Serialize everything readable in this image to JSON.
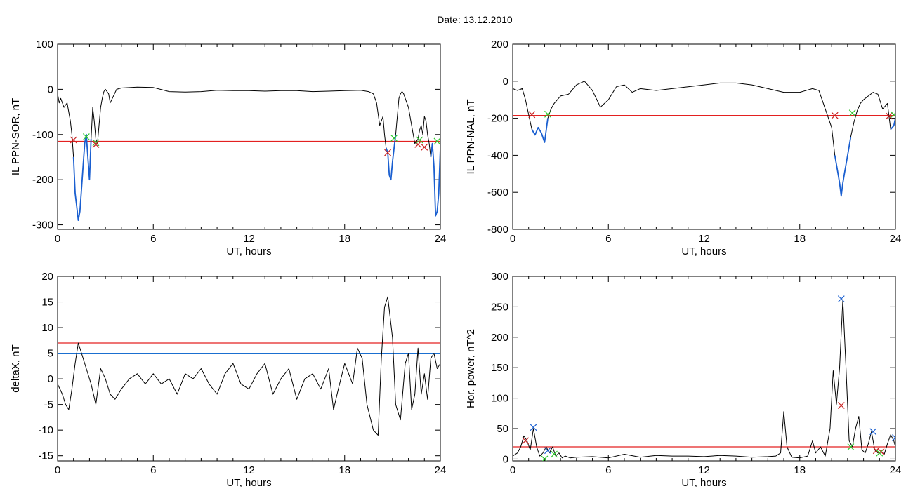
{
  "figure_title": "Date:  13.12.2010",
  "chart_data": [
    {
      "type": "line",
      "xlabel": "UT, hours",
      "ylabel": "IL PPN-SOR, nT",
      "xlim": [
        0,
        24
      ],
      "ylim": [
        -310,
        100
      ],
      "xticks": [
        0,
        6,
        12,
        18,
        24
      ],
      "yticks": [
        -300,
        -200,
        -100,
        0,
        100
      ],
      "series": [
        {
          "x": [
            0,
            0.1,
            0.2,
            0.4,
            0.6,
            0.7,
            0.8,
            0.9,
            1.0,
            1.1,
            1.2,
            1.3,
            1.4,
            1.5,
            1.6,
            1.7,
            1.8,
            1.9,
            2.0,
            2.1,
            2.2,
            2.3,
            2.4,
            2.5,
            2.6,
            2.7,
            2.8,
            2.9,
            3.0,
            3.1,
            3.2,
            3.3,
            3.5,
            3.7,
            4,
            5,
            6,
            7,
            8,
            9,
            10,
            11,
            12,
            13,
            14,
            15,
            16,
            17,
            18,
            19,
            19.5,
            19.8,
            20.0,
            20.2,
            20.4,
            20.5,
            20.6,
            20.7,
            20.8,
            20.9,
            21.0,
            21.1,
            21.2,
            21.3,
            21.4,
            21.5,
            21.6,
            21.7,
            21.8,
            21.9,
            22.0,
            22.2,
            22.4,
            22.6,
            22.7,
            22.8,
            22.9,
            23.0,
            23.1,
            23.2,
            23.3,
            23.4,
            23.5,
            23.6,
            23.7,
            23.8,
            23.9,
            24.0
          ],
          "y": [
            -10,
            -30,
            -20,
            -40,
            -30,
            -50,
            -70,
            -100,
            -150,
            -230,
            -260,
            -290,
            -270,
            -220,
            -170,
            -120,
            -100,
            -150,
            -200,
            -110,
            -40,
            -70,
            -110,
            -120,
            -80,
            -40,
            -20,
            -5,
            0,
            -5,
            -10,
            -30,
            -15,
            0,
            3,
            5,
            4,
            -5,
            -6,
            -5,
            -2,
            -3,
            -3,
            -4,
            -3,
            -3,
            -5,
            -4,
            -3,
            -2,
            -5,
            -10,
            -30,
            -80,
            -60,
            -100,
            -130,
            -140,
            -190,
            -200,
            -160,
            -130,
            -100,
            -60,
            -20,
            -10,
            -5,
            -10,
            -20,
            -30,
            -40,
            -80,
            -120,
            -110,
            -90,
            -80,
            -100,
            -60,
            -70,
            -100,
            -120,
            -150,
            -120,
            -170,
            -280,
            -270,
            -230,
            -130
          ]
        },
        {
          "x": [
            1.0,
            1.1,
            1.2,
            1.3,
            1.4,
            1.5,
            1.6,
            1.7,
            1.8,
            1.9,
            2.0,
            2.1
          ],
          "y": [
            -150,
            -230,
            -260,
            -290,
            -270,
            -220,
            -170,
            -120,
            -100,
            -150,
            -200,
            -110
          ]
        },
        {
          "x": [
            20.6,
            20.7,
            20.8,
            20.9,
            21.0,
            21.1,
            21.2
          ],
          "y": [
            -130,
            -140,
            -190,
            -200,
            -160,
            -130,
            -100
          ]
        },
        {
          "x": [
            23.4,
            23.5,
            23.6,
            23.7,
            23.8,
            23.9,
            24.0
          ],
          "y": [
            -150,
            -120,
            -170,
            -280,
            -270,
            -230,
            -130
          ]
        }
      ],
      "hlines": [
        {
          "y": -115,
          "color": "#e32020"
        }
      ],
      "markers": [
        {
          "x": 1.0,
          "y": -112,
          "color": "#c82020"
        },
        {
          "x": 1.8,
          "y": -105,
          "color": "#2ec82e"
        },
        {
          "x": 2.4,
          "y": -118,
          "color": "#2ec82e"
        },
        {
          "x": 2.4,
          "y": -122,
          "color": "#c82020"
        },
        {
          "x": 20.7,
          "y": -140,
          "color": "#c82020"
        },
        {
          "x": 21.1,
          "y": -108,
          "color": "#2ec82e"
        },
        {
          "x": 22.6,
          "y": -122,
          "color": "#c82020"
        },
        {
          "x": 22.7,
          "y": -112,
          "color": "#2ec82e"
        },
        {
          "x": 23.0,
          "y": -128,
          "color": "#c82020"
        },
        {
          "x": 23.8,
          "y": -115,
          "color": "#2ec82e"
        }
      ]
    },
    {
      "type": "line",
      "xlabel": "UT, hours",
      "ylabel": "IL PPN-NAL, nT",
      "xlim": [
        0,
        24
      ],
      "ylim": [
        -800,
        200
      ],
      "xticks": [
        0,
        6,
        12,
        18,
        24
      ],
      "yticks": [
        -800,
        -600,
        -400,
        -200,
        0,
        200
      ],
      "series": [
        {
          "x": [
            0,
            0.3,
            0.6,
            0.8,
            1.0,
            1.2,
            1.4,
            1.6,
            1.8,
            2.0,
            2.2,
            2.4,
            2.6,
            2.8,
            3.0,
            3.5,
            4,
            4.5,
            5,
            5.5,
            6,
            6.5,
            7,
            7.5,
            8,
            9,
            10,
            11,
            12,
            13,
            14,
            15,
            16,
            17,
            18,
            18.8,
            19.2,
            19.6,
            20.0,
            20.2,
            20.4,
            20.5,
            20.6,
            20.7,
            20.8,
            20.9,
            21.0,
            21.2,
            21.4,
            21.6,
            21.8,
            22.0,
            22.3,
            22.6,
            22.9,
            23.2,
            23.5,
            23.7,
            23.9,
            24.0
          ],
          "y": [
            -40,
            -50,
            -40,
            -100,
            -180,
            -260,
            -290,
            -250,
            -280,
            -330,
            -200,
            -150,
            -120,
            -100,
            -80,
            -70,
            -20,
            0,
            -50,
            -140,
            -100,
            -30,
            -20,
            -60,
            -40,
            -50,
            -40,
            -30,
            -20,
            -10,
            -10,
            -20,
            -40,
            -60,
            -60,
            -40,
            -50,
            -150,
            -250,
            -400,
            -500,
            -550,
            -620,
            -550,
            -500,
            -450,
            -400,
            -300,
            -220,
            -160,
            -120,
            -100,
            -80,
            -60,
            -70,
            -150,
            -120,
            -260,
            -240,
            -200
          ]
        },
        {
          "x": [
            1.2,
            1.4,
            1.6,
            1.8,
            2.0,
            2.2
          ],
          "y": [
            -260,
            -290,
            -250,
            -280,
            -330,
            -200
          ]
        },
        {
          "x": [
            20.2,
            20.4,
            20.5,
            20.6,
            20.7,
            20.8,
            20.9,
            21.0,
            21.2
          ],
          "y": [
            -400,
            -500,
            -550,
            -620,
            -550,
            -500,
            -450,
            -400,
            -300
          ]
        },
        {
          "x": [
            23.7,
            23.9,
            24.0
          ],
          "y": [
            -260,
            -240,
            -200
          ]
        }
      ],
      "hlines": [
        {
          "y": -185,
          "color": "#e32020"
        }
      ],
      "markers": [
        {
          "x": 1.2,
          "y": -180,
          "color": "#c82020"
        },
        {
          "x": 2.2,
          "y": -178,
          "color": "#2ec82e"
        },
        {
          "x": 20.2,
          "y": -185,
          "color": "#c82020"
        },
        {
          "x": 21.3,
          "y": -172,
          "color": "#2ec82e"
        },
        {
          "x": 23.6,
          "y": -188,
          "color": "#c82020"
        },
        {
          "x": 23.9,
          "y": -180,
          "color": "#2ec82e"
        }
      ]
    },
    {
      "type": "line",
      "xlabel": "UT, hours",
      "ylabel": "deltaX, nT",
      "xlim": [
        0,
        24
      ],
      "ylim": [
        -16,
        20
      ],
      "xticks": [
        0,
        6,
        12,
        18,
        24
      ],
      "yticks": [
        -15,
        -10,
        -5,
        0,
        5,
        10,
        15,
        20
      ],
      "series": [
        {
          "x": [
            0,
            0.3,
            0.5,
            0.7,
            0.9,
            1.1,
            1.3,
            1.5,
            1.8,
            2.1,
            2.4,
            2.7,
            3.0,
            3.3,
            3.6,
            4.0,
            4.5,
            5,
            5.5,
            6,
            6.5,
            7,
            7.5,
            8,
            8.5,
            9,
            9.5,
            10,
            10.5,
            11,
            11.5,
            12,
            12.5,
            13,
            13.5,
            14,
            14.5,
            15,
            15.5,
            16,
            16.5,
            17,
            17.3,
            17.6,
            18,
            18.5,
            18.8,
            19.1,
            19.4,
            19.8,
            20.1,
            20.3,
            20.5,
            20.7,
            21.0,
            21.2,
            21.5,
            21.8,
            22.0,
            22.2,
            22.4,
            22.6,
            22.8,
            23.0,
            23.2,
            23.4,
            23.6,
            23.8,
            24.0
          ],
          "y": [
            -1,
            -3,
            -5,
            -6,
            -2,
            3,
            7,
            5,
            2,
            -1,
            -5,
            2,
            0,
            -3,
            -4,
            -2,
            0,
            1,
            -1,
            1,
            -1,
            0,
            -3,
            1,
            0,
            2,
            -1,
            -3,
            1,
            3,
            -1,
            -2,
            1,
            3,
            -3,
            0,
            2,
            -4,
            0,
            1,
            -2,
            2,
            -6,
            -2,
            3,
            -1,
            6,
            4,
            -5,
            -10,
            -11,
            4,
            14,
            16,
            8,
            -5,
            -8,
            3,
            5,
            -6,
            -3,
            6,
            -3,
            1,
            -4,
            4,
            5,
            2,
            3
          ]
        }
      ],
      "hlines": [
        {
          "y": 7,
          "color": "#e32020"
        },
        {
          "y": 5,
          "color": "#1a6fd0"
        }
      ],
      "markers": []
    },
    {
      "type": "line",
      "xlabel": "UT, hours",
      "ylabel": "Hor. power, nT^2",
      "xlim": [
        0,
        24
      ],
      "ylim": [
        -3,
        300
      ],
      "xticks": [
        0,
        6,
        12,
        18,
        24
      ],
      "yticks": [
        0,
        50,
        100,
        150,
        200,
        250,
        300
      ],
      "series": [
        {
          "x": [
            0,
            0.3,
            0.5,
            0.7,
            0.9,
            1.1,
            1.3,
            1.5,
            1.7,
            1.9,
            2.1,
            2.3,
            2.5,
            2.7,
            2.9,
            3.1,
            3.3,
            3.6,
            4,
            5,
            6,
            7,
            8,
            9,
            10,
            11,
            12,
            13,
            14,
            15,
            16,
            16.5,
            16.8,
            17.0,
            17.2,
            17.5,
            18,
            18.5,
            18.8,
            19.0,
            19.3,
            19.6,
            19.9,
            20.1,
            20.3,
            20.5,
            20.7,
            20.9,
            21.1,
            21.3,
            21.5,
            21.7,
            21.9,
            22.1,
            22.3,
            22.5,
            22.7,
            22.9,
            23.1,
            23.3,
            23.5,
            23.7,
            23.9,
            24.0
          ],
          "y": [
            5,
            10,
            20,
            38,
            30,
            15,
            50,
            20,
            5,
            10,
            20,
            10,
            20,
            5,
            10,
            2,
            5,
            2,
            3,
            4,
            2,
            8,
            3,
            6,
            5,
            5,
            4,
            6,
            5,
            3,
            4,
            5,
            10,
            78,
            20,
            3,
            2,
            5,
            30,
            10,
            20,
            5,
            50,
            145,
            90,
            150,
            262,
            150,
            30,
            20,
            50,
            70,
            15,
            10,
            25,
            45,
            15,
            10,
            12,
            8,
            25,
            40,
            30,
            20
          ]
        }
      ],
      "hlines": [
        {
          "y": 20,
          "color": "#e32020"
        }
      ],
      "markers": [
        {
          "x": 0.8,
          "y": 30,
          "color": "#c82020"
        },
        {
          "x": 1.3,
          "y": 52,
          "color": "#1a5fd0"
        },
        {
          "x": 2.2,
          "y": 14,
          "color": "#1a5fd0"
        },
        {
          "x": 2.0,
          "y": 0,
          "color": "#2ec82e"
        },
        {
          "x": 2.6,
          "y": 8,
          "color": "#2ec82e"
        },
        {
          "x": 20.6,
          "y": 263,
          "color": "#1a5fd0"
        },
        {
          "x": 20.6,
          "y": 88,
          "color": "#c82020"
        },
        {
          "x": 21.2,
          "y": 20,
          "color": "#2ec82e"
        },
        {
          "x": 22.6,
          "y": 45,
          "color": "#1a5fd0"
        },
        {
          "x": 22.8,
          "y": 14,
          "color": "#c82020"
        },
        {
          "x": 23.1,
          "y": 12,
          "color": "#c82020"
        },
        {
          "x": 23.0,
          "y": 10,
          "color": "#2ec82e"
        },
        {
          "x": 24.0,
          "y": 35,
          "color": "#1a5fd0"
        }
      ]
    }
  ]
}
